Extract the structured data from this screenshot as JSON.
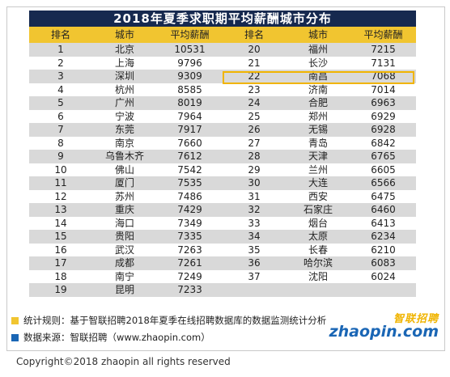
{
  "title": "2018年夏季求职期平均薪酬城市分布",
  "headers": [
    "排名",
    "城市",
    "平均薪酬",
    "排名",
    "城市",
    "平均薪酬"
  ],
  "rows": [
    [
      "1",
      "北京",
      "10531",
      "20",
      "福州",
      "7215"
    ],
    [
      "2",
      "上海",
      "9796",
      "21",
      "长沙",
      "7131"
    ],
    [
      "3",
      "深圳",
      "9309",
      "22",
      "南昌",
      "7068"
    ],
    [
      "4",
      "杭州",
      "8585",
      "23",
      "济南",
      "7014"
    ],
    [
      "5",
      "广州",
      "8019",
      "24",
      "合肥",
      "6963"
    ],
    [
      "6",
      "宁波",
      "7964",
      "25",
      "郑州",
      "6929"
    ],
    [
      "7",
      "东莞",
      "7917",
      "26",
      "无锡",
      "6928"
    ],
    [
      "8",
      "南京",
      "7660",
      "27",
      "青岛",
      "6842"
    ],
    [
      "9",
      "乌鲁木齐",
      "7612",
      "28",
      "天津",
      "6765"
    ],
    [
      "10",
      "佛山",
      "7542",
      "29",
      "兰州",
      "6605"
    ],
    [
      "11",
      "厦门",
      "7535",
      "30",
      "大连",
      "6566"
    ],
    [
      "12",
      "苏州",
      "7486",
      "31",
      "西安",
      "6475"
    ],
    [
      "13",
      "重庆",
      "7429",
      "32",
      "石家庄",
      "6460"
    ],
    [
      "14",
      "海口",
      "7349",
      "33",
      "烟台",
      "6413"
    ],
    [
      "15",
      "贵阳",
      "7335",
      "34",
      "太原",
      "6234"
    ],
    [
      "16",
      "武汉",
      "7263",
      "35",
      "长春",
      "6210"
    ],
    [
      "17",
      "成都",
      "7261",
      "36",
      "哈尔滨",
      "6083"
    ],
    [
      "18",
      "南宁",
      "7249",
      "37",
      "沈阳",
      "6024"
    ],
    [
      "19",
      "昆明",
      "7233",
      "",
      "",
      ""
    ]
  ],
  "notes": {
    "method": "统计规则：基于智联招聘2018年夏季在线招聘数据库的数据监测统计分析",
    "source": "数据来源：智联招聘（www.zhaopin.com）"
  },
  "logo": {
    "cn": "智联招聘",
    "en": "zhaopin.com"
  },
  "copyright": "Copyright©2018 zhaopin all rights reserved",
  "colors": {
    "title_bg": "#16294f",
    "header_bg": "#f1c530",
    "stripe": "#d9d9d9",
    "highlight_border": "#f0b400",
    "brand_blue": "#1a66b5"
  }
}
